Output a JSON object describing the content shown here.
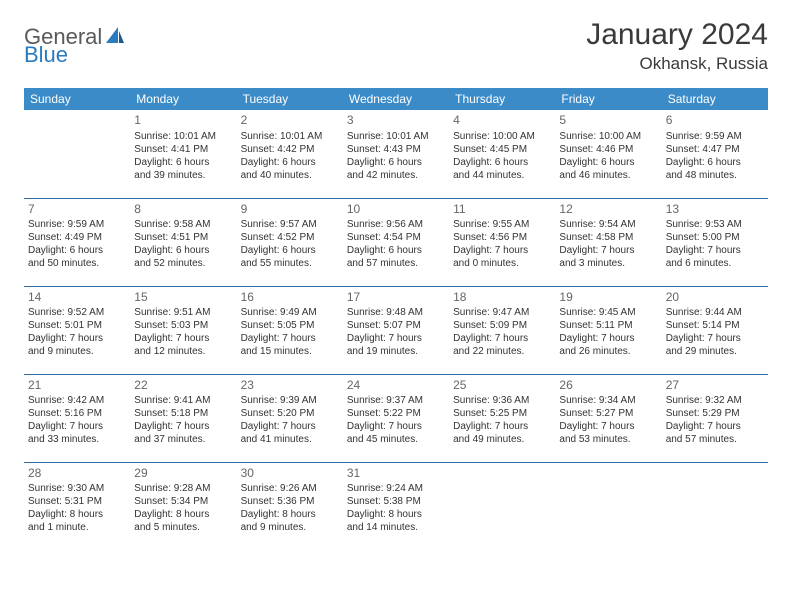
{
  "logo": {
    "general": "General",
    "blue": "Blue"
  },
  "title": "January 2024",
  "location": "Okhansk, Russia",
  "colors": {
    "header_bg": "#3b8bc8",
    "header_text": "#ffffff",
    "row_border": "#2f6da8",
    "logo_blue": "#2b7bbf",
    "logo_gray": "#5a5a5a",
    "title_color": "#3a3a3a",
    "cell_text": "#333333",
    "day_num": "#666666"
  },
  "weekdays": [
    "Sunday",
    "Monday",
    "Tuesday",
    "Wednesday",
    "Thursday",
    "Friday",
    "Saturday"
  ],
  "weeks": [
    [
      null,
      {
        "n": "1",
        "sr": "Sunrise: 10:01 AM",
        "ss": "Sunset: 4:41 PM",
        "d1": "Daylight: 6 hours",
        "d2": "and 39 minutes."
      },
      {
        "n": "2",
        "sr": "Sunrise: 10:01 AM",
        "ss": "Sunset: 4:42 PM",
        "d1": "Daylight: 6 hours",
        "d2": "and 40 minutes."
      },
      {
        "n": "3",
        "sr": "Sunrise: 10:01 AM",
        "ss": "Sunset: 4:43 PM",
        "d1": "Daylight: 6 hours",
        "d2": "and 42 minutes."
      },
      {
        "n": "4",
        "sr": "Sunrise: 10:00 AM",
        "ss": "Sunset: 4:45 PM",
        "d1": "Daylight: 6 hours",
        "d2": "and 44 minutes."
      },
      {
        "n": "5",
        "sr": "Sunrise: 10:00 AM",
        "ss": "Sunset: 4:46 PM",
        "d1": "Daylight: 6 hours",
        "d2": "and 46 minutes."
      },
      {
        "n": "6",
        "sr": "Sunrise: 9:59 AM",
        "ss": "Sunset: 4:47 PM",
        "d1": "Daylight: 6 hours",
        "d2": "and 48 minutes."
      }
    ],
    [
      {
        "n": "7",
        "sr": "Sunrise: 9:59 AM",
        "ss": "Sunset: 4:49 PM",
        "d1": "Daylight: 6 hours",
        "d2": "and 50 minutes."
      },
      {
        "n": "8",
        "sr": "Sunrise: 9:58 AM",
        "ss": "Sunset: 4:51 PM",
        "d1": "Daylight: 6 hours",
        "d2": "and 52 minutes."
      },
      {
        "n": "9",
        "sr": "Sunrise: 9:57 AM",
        "ss": "Sunset: 4:52 PM",
        "d1": "Daylight: 6 hours",
        "d2": "and 55 minutes."
      },
      {
        "n": "10",
        "sr": "Sunrise: 9:56 AM",
        "ss": "Sunset: 4:54 PM",
        "d1": "Daylight: 6 hours",
        "d2": "and 57 minutes."
      },
      {
        "n": "11",
        "sr": "Sunrise: 9:55 AM",
        "ss": "Sunset: 4:56 PM",
        "d1": "Daylight: 7 hours",
        "d2": "and 0 minutes."
      },
      {
        "n": "12",
        "sr": "Sunrise: 9:54 AM",
        "ss": "Sunset: 4:58 PM",
        "d1": "Daylight: 7 hours",
        "d2": "and 3 minutes."
      },
      {
        "n": "13",
        "sr": "Sunrise: 9:53 AM",
        "ss": "Sunset: 5:00 PM",
        "d1": "Daylight: 7 hours",
        "d2": "and 6 minutes."
      }
    ],
    [
      {
        "n": "14",
        "sr": "Sunrise: 9:52 AM",
        "ss": "Sunset: 5:01 PM",
        "d1": "Daylight: 7 hours",
        "d2": "and 9 minutes."
      },
      {
        "n": "15",
        "sr": "Sunrise: 9:51 AM",
        "ss": "Sunset: 5:03 PM",
        "d1": "Daylight: 7 hours",
        "d2": "and 12 minutes."
      },
      {
        "n": "16",
        "sr": "Sunrise: 9:49 AM",
        "ss": "Sunset: 5:05 PM",
        "d1": "Daylight: 7 hours",
        "d2": "and 15 minutes."
      },
      {
        "n": "17",
        "sr": "Sunrise: 9:48 AM",
        "ss": "Sunset: 5:07 PM",
        "d1": "Daylight: 7 hours",
        "d2": "and 19 minutes."
      },
      {
        "n": "18",
        "sr": "Sunrise: 9:47 AM",
        "ss": "Sunset: 5:09 PM",
        "d1": "Daylight: 7 hours",
        "d2": "and 22 minutes."
      },
      {
        "n": "19",
        "sr": "Sunrise: 9:45 AM",
        "ss": "Sunset: 5:11 PM",
        "d1": "Daylight: 7 hours",
        "d2": "and 26 minutes."
      },
      {
        "n": "20",
        "sr": "Sunrise: 9:44 AM",
        "ss": "Sunset: 5:14 PM",
        "d1": "Daylight: 7 hours",
        "d2": "and 29 minutes."
      }
    ],
    [
      {
        "n": "21",
        "sr": "Sunrise: 9:42 AM",
        "ss": "Sunset: 5:16 PM",
        "d1": "Daylight: 7 hours",
        "d2": "and 33 minutes."
      },
      {
        "n": "22",
        "sr": "Sunrise: 9:41 AM",
        "ss": "Sunset: 5:18 PM",
        "d1": "Daylight: 7 hours",
        "d2": "and 37 minutes."
      },
      {
        "n": "23",
        "sr": "Sunrise: 9:39 AM",
        "ss": "Sunset: 5:20 PM",
        "d1": "Daylight: 7 hours",
        "d2": "and 41 minutes."
      },
      {
        "n": "24",
        "sr": "Sunrise: 9:37 AM",
        "ss": "Sunset: 5:22 PM",
        "d1": "Daylight: 7 hours",
        "d2": "and 45 minutes."
      },
      {
        "n": "25",
        "sr": "Sunrise: 9:36 AM",
        "ss": "Sunset: 5:25 PM",
        "d1": "Daylight: 7 hours",
        "d2": "and 49 minutes."
      },
      {
        "n": "26",
        "sr": "Sunrise: 9:34 AM",
        "ss": "Sunset: 5:27 PM",
        "d1": "Daylight: 7 hours",
        "d2": "and 53 minutes."
      },
      {
        "n": "27",
        "sr": "Sunrise: 9:32 AM",
        "ss": "Sunset: 5:29 PM",
        "d1": "Daylight: 7 hours",
        "d2": "and 57 minutes."
      }
    ],
    [
      {
        "n": "28",
        "sr": "Sunrise: 9:30 AM",
        "ss": "Sunset: 5:31 PM",
        "d1": "Daylight: 8 hours",
        "d2": "and 1 minute."
      },
      {
        "n": "29",
        "sr": "Sunrise: 9:28 AM",
        "ss": "Sunset: 5:34 PM",
        "d1": "Daylight: 8 hours",
        "d2": "and 5 minutes."
      },
      {
        "n": "30",
        "sr": "Sunrise: 9:26 AM",
        "ss": "Sunset: 5:36 PM",
        "d1": "Daylight: 8 hours",
        "d2": "and 9 minutes."
      },
      {
        "n": "31",
        "sr": "Sunrise: 9:24 AM",
        "ss": "Sunset: 5:38 PM",
        "d1": "Daylight: 8 hours",
        "d2": "and 14 minutes."
      },
      null,
      null,
      null
    ]
  ]
}
